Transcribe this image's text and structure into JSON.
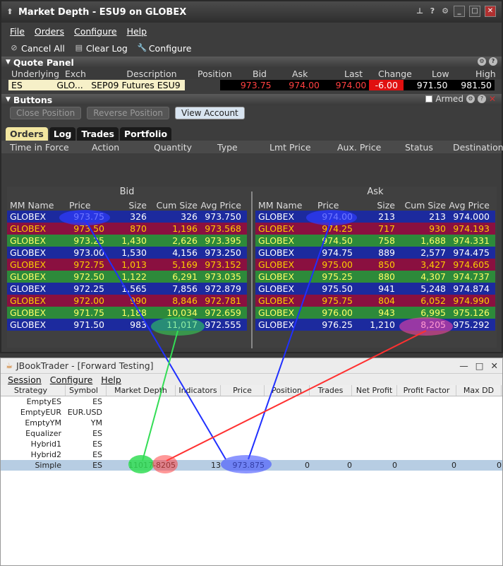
{
  "md": {
    "title": "Market Depth - ESU9 on GLOBEX",
    "menu": [
      "File",
      "Orders",
      "Configure",
      "Help"
    ],
    "toolbar": [
      "Cancel All",
      "Clear Log",
      "Configure"
    ],
    "quote_panel": {
      "title": "Quote Panel",
      "headers": [
        "Underlying",
        "Exch",
        "Description",
        "Position",
        "Bid",
        "Ask",
        "Last",
        "Change",
        "Low",
        "High"
      ],
      "row": {
        "underlying": "ES",
        "exch": "GLO...",
        "description": "SEP09 Futures ESU9",
        "position": "",
        "bid": "973.75",
        "ask": "974.00",
        "last": "974.00",
        "change": "-6.00",
        "low": "971.50",
        "high": "981.50"
      }
    },
    "buttons_panel": {
      "title": "Buttons",
      "buttons": [
        "Close Position",
        "Reverse Position",
        "View Account"
      ],
      "armed": "Armed"
    },
    "tabs": [
      "Orders",
      "Log",
      "Trades",
      "Portfolio"
    ],
    "order_headers": [
      "Time in Force",
      "Action",
      "Quantity",
      "Type",
      "Lmt Price",
      "Aux. Price",
      "Status",
      "Destination"
    ],
    "bid_label": "Bid",
    "ask_label": "Ask",
    "book_headers": [
      "MM Name",
      "Price",
      "Size",
      "Cum Size",
      "Avg Price"
    ],
    "bids": [
      {
        "mm": "GLOBEX",
        "price": "973.75",
        "size": "326",
        "cum": "326",
        "avg": "973.750"
      },
      {
        "mm": "GLOBEX",
        "price": "973.50",
        "size": "870",
        "cum": "1,196",
        "avg": "973.568"
      },
      {
        "mm": "GLOBEX",
        "price": "973.25",
        "size": "1,430",
        "cum": "2,626",
        "avg": "973.395"
      },
      {
        "mm": "GLOBEX",
        "price": "973.00",
        "size": "1,530",
        "cum": "4,156",
        "avg": "973.250"
      },
      {
        "mm": "GLOBEX",
        "price": "972.75",
        "size": "1,013",
        "cum": "5,169",
        "avg": "973.152"
      },
      {
        "mm": "GLOBEX",
        "price": "972.50",
        "size": "1,122",
        "cum": "6,291",
        "avg": "973.035"
      },
      {
        "mm": "GLOBEX",
        "price": "972.25",
        "size": "1,565",
        "cum": "7,856",
        "avg": "972.879"
      },
      {
        "mm": "GLOBEX",
        "price": "972.00",
        "size": "990",
        "cum": "8,846",
        "avg": "972.781"
      },
      {
        "mm": "GLOBEX",
        "price": "971.75",
        "size": "1,188",
        "cum": "10,034",
        "avg": "972.659"
      },
      {
        "mm": "GLOBEX",
        "price": "971.50",
        "size": "983",
        "cum": "11,017",
        "avg": "972.555"
      }
    ],
    "asks": [
      {
        "mm": "GLOBEX",
        "price": "974.00",
        "size": "213",
        "cum": "213",
        "avg": "974.000"
      },
      {
        "mm": "GLOBEX",
        "price": "974.25",
        "size": "717",
        "cum": "930",
        "avg": "974.193"
      },
      {
        "mm": "GLOBEX",
        "price": "974.50",
        "size": "758",
        "cum": "1,688",
        "avg": "974.331"
      },
      {
        "mm": "GLOBEX",
        "price": "974.75",
        "size": "889",
        "cum": "2,577",
        "avg": "974.475"
      },
      {
        "mm": "GLOBEX",
        "price": "975.00",
        "size": "850",
        "cum": "3,427",
        "avg": "974.605"
      },
      {
        "mm": "GLOBEX",
        "price": "975.25",
        "size": "880",
        "cum": "4,307",
        "avg": "974.737"
      },
      {
        "mm": "GLOBEX",
        "price": "975.50",
        "size": "941",
        "cum": "5,248",
        "avg": "974.874"
      },
      {
        "mm": "GLOBEX",
        "price": "975.75",
        "size": "804",
        "cum": "6,052",
        "avg": "974.990"
      },
      {
        "mm": "GLOBEX",
        "price": "976.00",
        "size": "943",
        "cum": "6,995",
        "avg": "975.126"
      },
      {
        "mm": "GLOBEX",
        "price": "976.25",
        "size": "1,210",
        "cum": "8,205",
        "avg": "975.292"
      }
    ]
  },
  "jbt": {
    "title": "JBookTrader - [Forward Testing]",
    "menu": [
      "Session",
      "Configure",
      "Help"
    ],
    "headers": [
      "Strategy",
      "Symbol",
      "Market Depth",
      "Indicators",
      "Price",
      "Position",
      "Trades",
      "Net Profit",
      "Profit Factor",
      "Max DD"
    ],
    "rows": [
      {
        "strategy": "EmptyES",
        "symbol": "ES",
        "depth": "",
        "ind": "",
        "price": "",
        "pos": "",
        "trades": "",
        "np": "",
        "pf": "",
        "dd": ""
      },
      {
        "strategy": "EmptyEUR",
        "symbol": "EUR.USD",
        "depth": "",
        "ind": "",
        "price": "",
        "pos": "",
        "trades": "",
        "np": "",
        "pf": "",
        "dd": ""
      },
      {
        "strategy": "EmptyYM",
        "symbol": "YM",
        "depth": "",
        "ind": "",
        "price": "",
        "pos": "",
        "trades": "",
        "np": "",
        "pf": "",
        "dd": ""
      },
      {
        "strategy": "Equalizer",
        "symbol": "ES",
        "depth": "",
        "ind": "",
        "price": "",
        "pos": "",
        "trades": "",
        "np": "",
        "pf": "",
        "dd": ""
      },
      {
        "strategy": "Hybrid1",
        "symbol": "ES",
        "depth": "",
        "ind": "",
        "price": "",
        "pos": "",
        "trades": "",
        "np": "",
        "pf": "",
        "dd": ""
      },
      {
        "strategy": "Hybrid2",
        "symbol": "ES",
        "depth": "",
        "ind": "",
        "price": "",
        "pos": "",
        "trades": "",
        "np": "",
        "pf": "",
        "dd": ""
      },
      {
        "strategy": "Simple",
        "symbol": "ES",
        "depth": "11017-8205",
        "ind": "13",
        "price": "973.875",
        "pos": "0",
        "trades": "0",
        "np": "0",
        "pf": "0",
        "dd": "0"
      }
    ]
  },
  "colors": {
    "bid_highlight": "#2f3cff",
    "ask_highlight": "#2f3cff",
    "green": "#33dd55",
    "red": "#ff4444"
  }
}
